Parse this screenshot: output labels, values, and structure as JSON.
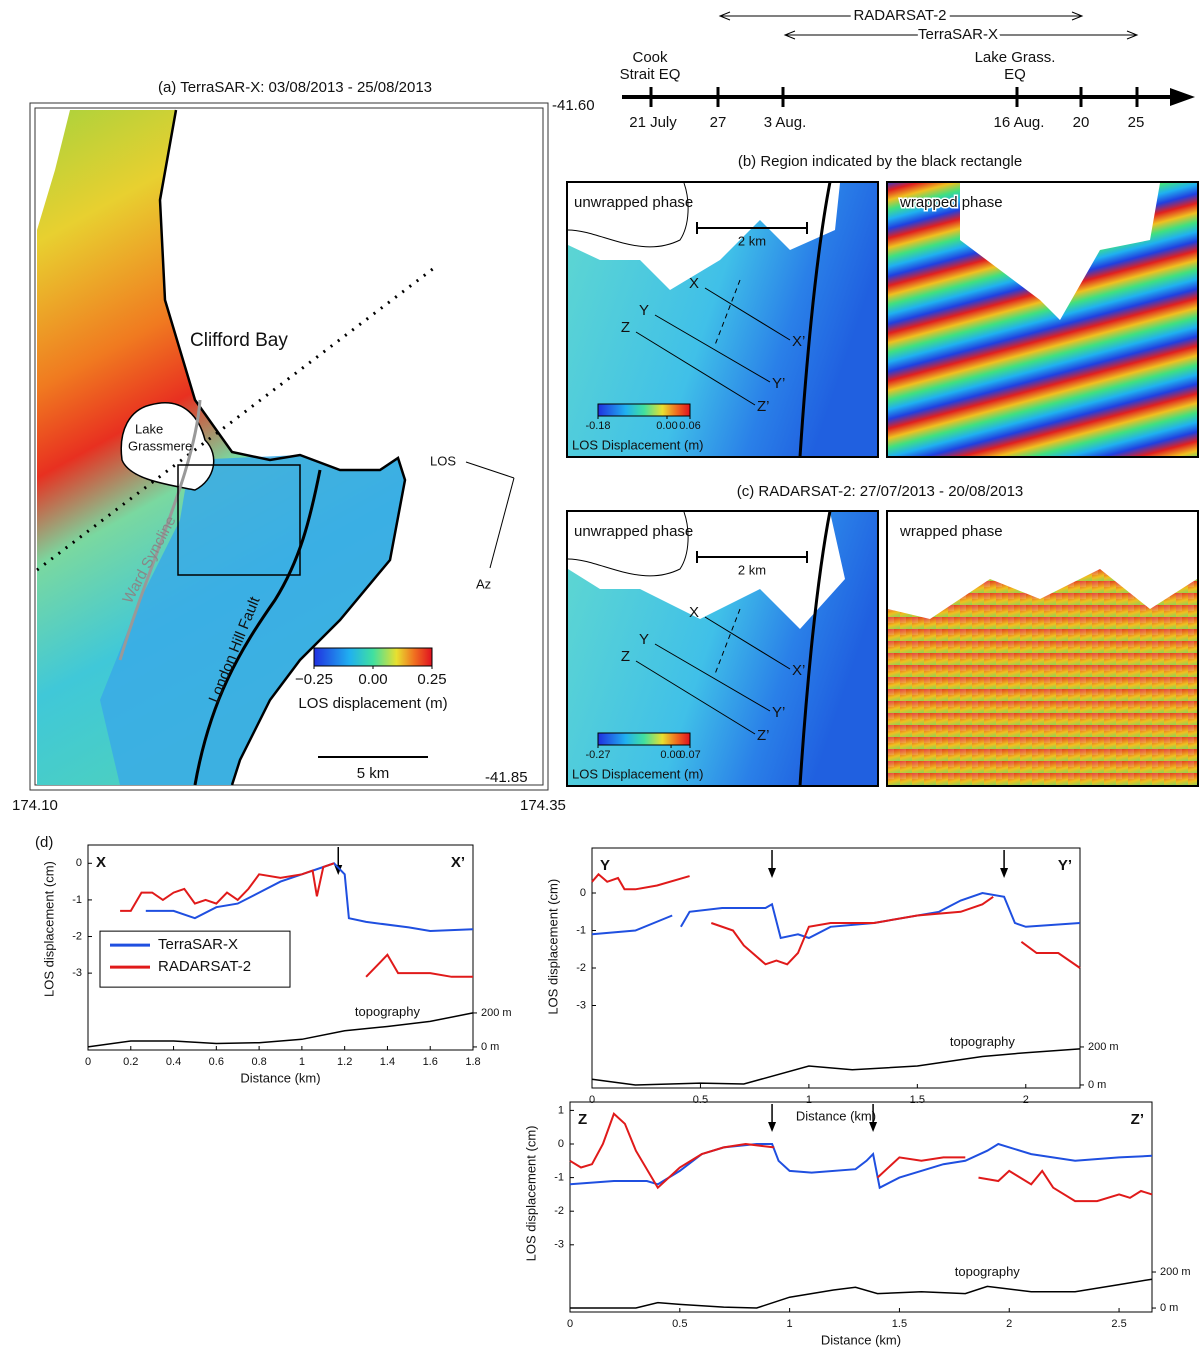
{
  "panel_a": {
    "title": "(a) TerraSAR-X: 03/08/2013 - 25/08/2013",
    "labels": {
      "bay": "Clifford Bay",
      "lake": "Lake",
      "lake2": "Grassmere",
      "syncline": "Ward Syncline",
      "fault": "London Hill Fault",
      "los": "LOS",
      "az": "Az",
      "scale": "5 km"
    },
    "colorbar": {
      "label": "LOS displacement (m)",
      "lim": [
        -0.25,
        0.25
      ],
      "ticks": [
        {
          "value": -0.25,
          "label": "−0.25"
        },
        {
          "value": 0,
          "label": "0.00"
        },
        0.25
      ]
    },
    "coords": {
      "lon_left": "174.10",
      "lon_right": "174.35",
      "lat_top": "-41.60",
      "lat_bottom": "-41.85"
    }
  },
  "timeline": {
    "ranges": [
      "RADARSAT-2",
      "TerraSAR-X"
    ],
    "events": [
      "Cook",
      "Strait EQ",
      "Lake Grass.",
      "EQ"
    ],
    "dates": [
      "21 July",
      "27",
      "3 Aug.",
      "16 Aug.",
      "20",
      "25"
    ]
  },
  "panel_b": {
    "title": "(b) Region indicated by the black rectangle",
    "left": "unwrapped phase",
    "right": "wrapped phase",
    "scale": "2 km",
    "profiles": [
      "X",
      "X’",
      "Y",
      "Y’",
      "Z",
      "Z’"
    ],
    "colorbar": {
      "label": "LOS Displacement (m)",
      "lim": [
        -0.18,
        0.06
      ],
      "ticks": [
        -0.18,
        {
          "value": 0,
          "label": "0.00"
        },
        0.06
      ]
    }
  },
  "panel_c": {
    "title": "(c) RADARSAT-2: 27/07/2013 - 20/08/2013",
    "left": "unwrapped phase",
    "right": "wrapped phase",
    "scale": "2 km",
    "profiles": [
      "X",
      "X’",
      "Y",
      "Y’",
      "Z",
      "Z’"
    ],
    "colorbar": {
      "label": "LOS Displacement (m)",
      "lim": [
        -0.27,
        0.07
      ],
      "ticks": [
        -0.27,
        {
          "value": 0,
          "label": "0.00"
        },
        0.07
      ]
    }
  },
  "panel_d": {
    "label": "(d)"
  },
  "chart_data": [
    {
      "type": "line",
      "start_label": "X",
      "end_label": "X’",
      "x_label": "Distance (km)",
      "y_label": "LOS displacement (cm)",
      "legend": "lower left",
      "xlim": [
        0,
        1.8
      ],
      "xticks": [
        0,
        0.2,
        0.4,
        0.6,
        0.8,
        1,
        1.2,
        1.4,
        1.6,
        1.8
      ],
      "ylim": [
        -5.1,
        0.5
      ],
      "yticks": [
        0,
        -1,
        -2,
        -3
      ],
      "y2lim": [
        -18,
        1188
      ],
      "y2ticks": [
        {
          "value": 200,
          "label": "200 m"
        },
        {
          "value": 0,
          "label": "0 m"
        }
      ],
      "arrows": [
        1.17
      ],
      "series": [
        {
          "name": "TerraSAR-X",
          "color": "#1f4fe0",
          "x": [
            0.27,
            0.4,
            0.5,
            0.6,
            0.7,
            0.8,
            0.9,
            1.0,
            1.1,
            1.15,
            1.2,
            1.22,
            1.3,
            1.5,
            1.6,
            1.8
          ],
          "values": [
            -1.3,
            -1.3,
            -1.5,
            -1.2,
            -1.1,
            -0.8,
            -0.5,
            -0.3,
            -0.1,
            0,
            -0.3,
            -1.5,
            -1.6,
            -1.75,
            -1.85,
            -1.8
          ]
        },
        {
          "name": "RADARSAT-2",
          "color": "#e01a1a",
          "x": [
            0.15,
            0.2,
            0.25,
            0.3,
            0.35,
            0.4,
            0.45,
            0.5,
            0.55,
            0.6,
            0.65,
            0.7,
            0.75,
            0.8,
            0.9,
            1.0,
            1.05,
            1.07,
            1.1,
            1.15,
            null,
            1.3,
            1.35,
            1.4,
            1.45,
            1.6,
            1.7,
            1.8
          ],
          "values": [
            -1.3,
            -1.3,
            -0.8,
            -0.8,
            -1.0,
            -0.8,
            -0.7,
            -1.1,
            -1.0,
            -1.1,
            -0.8,
            -1.0,
            -0.7,
            -0.3,
            -0.4,
            -0.3,
            -0.2,
            -0.9,
            -0.1,
            0,
            null,
            -3.1,
            -2.8,
            -2.5,
            -3.0,
            -3.0,
            -3.1,
            -3.1
          ]
        },
        {
          "name": "topography",
          "color": "#000000",
          "axis": "y2",
          "x": [
            0,
            0.2,
            0.4,
            0.6,
            0.8,
            1.0,
            1.2,
            1.4,
            1.6,
            1.8
          ],
          "values": [
            0,
            35,
            35,
            20,
            25,
            45,
            95,
            120,
            150,
            200
          ]
        }
      ]
    },
    {
      "type": "line",
      "start_label": "Y",
      "end_label": "Y’",
      "x_label": "Distance (km)",
      "y_label": "LOS displacement (cm)",
      "xlim": [
        0,
        2.25
      ],
      "xticks": [
        0,
        0.5,
        1,
        1.5,
        2
      ],
      "ylim": [
        -5.2,
        1.2
      ],
      "yticks": [
        0,
        -1,
        -2,
        -3
      ],
      "y2lim": [
        -16,
        1247
      ],
      "y2ticks": [
        {
          "value": 200,
          "label": "200 m"
        },
        {
          "value": 0,
          "label": "0 m"
        }
      ],
      "arrows": [
        0.83,
        1.9
      ],
      "series": [
        {
          "name": "TerraSAR-X",
          "color": "#1f4fe0",
          "x": [
            0,
            0.2,
            0.37,
            null,
            0.41,
            0.45,
            0.6,
            0.8,
            0.83,
            0.87,
            0.95,
            1.0,
            1.1,
            1.3,
            1.6,
            1.7,
            1.8,
            1.9,
            1.95,
            2.0,
            2.25
          ],
          "values": [
            -1.1,
            -1.0,
            -0.6,
            null,
            -0.9,
            -0.5,
            -0.4,
            -0.4,
            -0.3,
            -1.2,
            -1.1,
            -1.2,
            -0.9,
            -0.8,
            -0.5,
            -0.2,
            0,
            -0.1,
            -0.8,
            -0.9,
            -0.8
          ]
        },
        {
          "name": "RADARSAT-2",
          "color": "#e01a1a",
          "x": [
            0,
            0.03,
            0.07,
            0.12,
            0.15,
            0.2,
            0.3,
            0.45,
            null,
            0.55,
            0.65,
            0.7,
            0.8,
            0.85,
            0.9,
            0.95,
            1.0,
            1.1,
            1.3,
            1.5,
            1.7,
            1.8,
            1.85,
            null,
            1.98,
            2.05,
            2.15,
            2.25
          ],
          "values": [
            0.3,
            0.5,
            0.3,
            0.4,
            0.1,
            0.1,
            0.2,
            0.45,
            null,
            -0.8,
            -1.0,
            -1.4,
            -1.9,
            -1.8,
            -1.9,
            -1.6,
            -0.9,
            -0.8,
            -0.8,
            -0.6,
            -0.5,
            -0.3,
            -0.1,
            null,
            -1.3,
            -1.6,
            -1.6,
            -2.0
          ]
        },
        {
          "name": "topography",
          "color": "#000000",
          "axis": "y2",
          "x": [
            0,
            0.2,
            0.5,
            0.7,
            1.0,
            1.2,
            1.5,
            1.8,
            2.0,
            2.25
          ],
          "values": [
            30,
            0,
            10,
            5,
            100,
            80,
            100,
            150,
            170,
            190
          ]
        }
      ]
    },
    {
      "type": "line",
      "start_label": "Z",
      "end_label": "Z’",
      "x_label": "Distance (km)",
      "y_label": "LOS displacement (cm)",
      "xlim": [
        0,
        2.65
      ],
      "xticks": [
        0,
        0.5,
        1,
        1.5,
        2,
        2.5
      ],
      "ylim": [
        -5,
        1.25
      ],
      "yticks": [
        1,
        0,
        -1,
        -2,
        -3
      ],
      "y2lim": [
        -22,
        1144
      ],
      "y2ticks": [
        {
          "value": 200,
          "label": "200 m"
        },
        {
          "value": 0,
          "label": "0 m"
        }
      ],
      "arrows": [
        0.92,
        1.38
      ],
      "series": [
        {
          "name": "TerraSAR-X",
          "color": "#1f4fe0",
          "x": [
            0,
            0.2,
            0.35,
            0.4,
            0.5,
            0.6,
            0.7,
            0.85,
            0.92,
            0.95,
            1.0,
            1.1,
            1.3,
            1.35,
            1.38,
            1.41,
            1.5,
            1.7,
            1.8,
            1.9,
            1.95,
            2.1,
            2.3,
            2.5,
            2.65
          ],
          "values": [
            -1.2,
            -1.1,
            -1.1,
            -1.2,
            -0.8,
            -0.3,
            -0.1,
            0,
            0,
            -0.5,
            -0.8,
            -0.85,
            -0.75,
            -0.5,
            -0.3,
            -1.3,
            -1.0,
            -0.6,
            -0.5,
            -0.2,
            0,
            -0.3,
            -0.5,
            -0.4,
            -0.35
          ]
        },
        {
          "name": "RADARSAT-2",
          "color": "#e01a1a",
          "x": [
            0,
            0.05,
            0.1,
            0.15,
            0.2,
            0.25,
            0.3,
            0.4,
            0.5,
            0.6,
            0.7,
            0.8,
            0.93,
            null,
            1.4,
            1.5,
            1.6,
            1.7,
            1.8,
            null,
            1.86,
            1.95,
            2.0,
            2.1,
            2.15,
            2.2,
            2.3,
            2.4,
            2.5,
            2.55,
            2.6,
            2.65
          ],
          "values": [
            -0.5,
            -0.7,
            -0.6,
            0,
            0.9,
            0.6,
            -0.2,
            -1.3,
            -0.7,
            -0.3,
            -0.1,
            0,
            -0.1,
            null,
            -1.0,
            -0.4,
            -0.5,
            -0.4,
            -0.4,
            null,
            -1.0,
            -1.1,
            -0.8,
            -1.2,
            -0.8,
            -1.3,
            -1.7,
            -1.7,
            -1.5,
            -1.6,
            -1.4,
            -1.5
          ]
        },
        {
          "name": "topography",
          "color": "#000000",
          "axis": "y2",
          "x": [
            0,
            0.3,
            0.4,
            0.5,
            0.7,
            0.85,
            1.0,
            1.2,
            1.3,
            1.4,
            1.6,
            1.8,
            1.9,
            2.1,
            2.3,
            2.5,
            2.65
          ],
          "values": [
            0,
            0,
            30,
            20,
            5,
            0,
            60,
            100,
            115,
            80,
            90,
            80,
            120,
            90,
            90,
            130,
            160
          ]
        }
      ]
    }
  ]
}
